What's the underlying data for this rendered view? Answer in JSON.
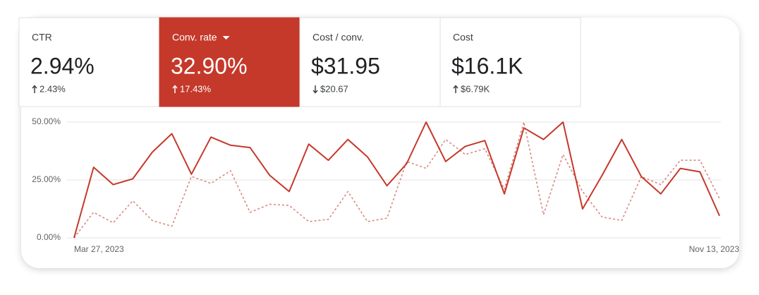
{
  "cards": [
    {
      "label": "CTR",
      "value": "2.94%",
      "change": "2.43%",
      "direction": "up",
      "selected": false
    },
    {
      "label": "Conv. rate",
      "value": "32.90%",
      "change": "17.43%",
      "direction": "up",
      "selected": true
    },
    {
      "label": "Cost / conv.",
      "value": "$31.95",
      "change": "$20.67",
      "direction": "down",
      "selected": false
    },
    {
      "label": "Cost",
      "value": "$16.1K",
      "change": "$6.79K",
      "direction": "up",
      "selected": false
    }
  ],
  "chart_data": {
    "type": "line",
    "categories": [
      "Mar 27, 2023",
      null,
      null,
      null,
      null,
      null,
      null,
      null,
      null,
      null,
      null,
      null,
      null,
      null,
      null,
      null,
      null,
      null,
      null,
      null,
      null,
      null,
      null,
      null,
      null,
      null,
      null,
      null,
      null,
      null,
      null,
      null,
      null,
      "Nov 13, 2023"
    ],
    "series": [
      {
        "color": "#c5392b",
        "style": "solid",
        "values": [
          0,
          30.5,
          23,
          25.5,
          37,
          45,
          27.5,
          43.5,
          40,
          39,
          27,
          20,
          40.5,
          33.5,
          42.5,
          35,
          22.5,
          32,
          50,
          33,
          39.5,
          42,
          19,
          47.5,
          42.5,
          50,
          12.5,
          27,
          42.5,
          26.5,
          19,
          30,
          28.5,
          9.5
        ]
      },
      {
        "color": "#d98a80",
        "style": "dashed",
        "values": [
          0,
          11,
          6.5,
          16,
          7.5,
          5,
          26.5,
          23.5,
          29,
          11,
          14.5,
          14,
          7,
          8,
          20,
          7,
          8.5,
          33,
          30,
          42.5,
          36,
          38.5,
          21,
          50,
          10,
          36,
          20,
          9,
          7.5,
          26.5,
          23,
          33.5,
          33.5,
          17
        ]
      }
    ],
    "ylim": [
      0,
      50
    ],
    "yticks": [
      {
        "value": 0,
        "label": "0.00%"
      },
      {
        "value": 25,
        "label": "25.00%"
      },
      {
        "value": 50,
        "label": "50.00%"
      }
    ],
    "grid": true
  }
}
